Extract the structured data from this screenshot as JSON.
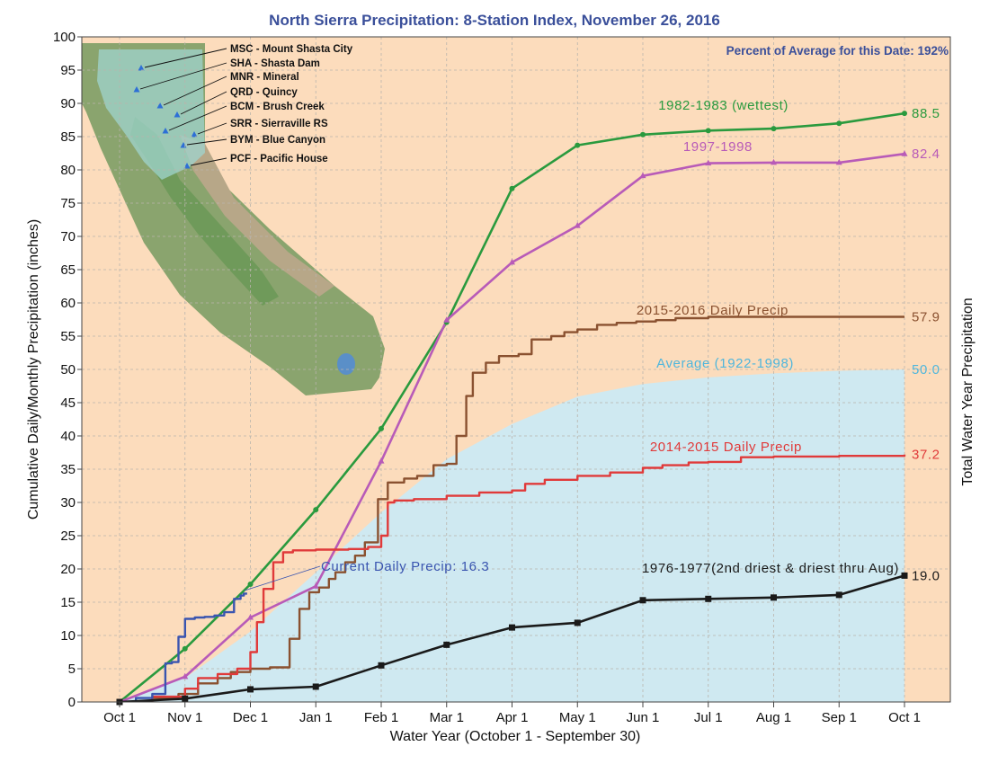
{
  "chart_data": {
    "type": "line",
    "title": "North Sierra Precipitation: 8-Station Index, November 26, 2016",
    "percent_note": "Percent of Average for this Date: 192%",
    "xlabel": "Water Year (October 1 - September 30)",
    "ylabel": "Cumulative Daily/Monthly Precipitation (inches)",
    "ylabel_right": "Total Water Year Precipitation",
    "xlim": [
      0,
      12
    ],
    "ylim": [
      0,
      100
    ],
    "x_ticks": [
      "Oct 1",
      "Nov 1",
      "Dec 1",
      "Jan 1",
      "Feb 1",
      "Mar 1",
      "Apr 1",
      "May 1",
      "Jun 1",
      "Jul 1",
      "Aug 1",
      "Sep 1",
      "Oct 1"
    ],
    "y_ticks": [
      0,
      5,
      10,
      15,
      20,
      25,
      30,
      35,
      40,
      45,
      50,
      55,
      60,
      65,
      70,
      75,
      80,
      85,
      90,
      95,
      100
    ],
    "grid": true,
    "stations": [
      "MSC - Mount Shasta City",
      "SHA - Shasta Dam",
      "MNR - Mineral",
      "QRD - Quincy",
      "BCM - Brush Creek",
      "SRR - Sierraville RS",
      "BYM - Blue Canyon",
      "PCF - Pacific House"
    ],
    "series": [
      {
        "name": "Average (1922-1998)",
        "kind": "area",
        "color": "#cfe9f1",
        "label_color": "#4fb6dc",
        "end_value": "50.0",
        "x": [
          0,
          1,
          2,
          3,
          4,
          5,
          6,
          7,
          8,
          9,
          10,
          11,
          12
        ],
        "y": [
          0,
          3.6,
          10.6,
          19.5,
          28.5,
          36.5,
          41.8,
          45.9,
          47.8,
          48.8,
          49.4,
          49.8,
          50.0
        ]
      },
      {
        "name": "1982-1983 (wettest)",
        "kind": "monthly",
        "color": "#2a9a3e",
        "label_color": "#2a9a3e",
        "end_value": "88.5",
        "x": [
          0,
          1,
          2,
          3,
          4,
          5,
          6,
          7,
          8,
          9,
          10,
          11,
          12
        ],
        "y": [
          0,
          8.0,
          17.7,
          28.9,
          41.1,
          57.1,
          77.2,
          83.7,
          85.3,
          85.9,
          86.2,
          87.0,
          88.5
        ]
      },
      {
        "name": "1997-1998",
        "kind": "monthly",
        "color": "#b85bb8",
        "label_color": "#b85bb8",
        "end_value": "82.4",
        "x": [
          0,
          1,
          2,
          3,
          4,
          5,
          6,
          7,
          8,
          9,
          10,
          11,
          12
        ],
        "y": [
          0,
          3.8,
          12.7,
          17.4,
          36.2,
          57.4,
          66.1,
          71.6,
          79.1,
          81.0,
          81.1,
          81.1,
          82.4
        ]
      },
      {
        "name": "2015-2016 Daily Precip",
        "kind": "daily",
        "color": "#8a5130",
        "label_color": "#8a5130",
        "end_value": "57.9",
        "x": [
          0,
          0.5,
          0.9,
          1.2,
          1.5,
          1.7,
          2.0,
          2.3,
          2.6,
          2.75,
          2.9,
          3.05,
          3.2,
          3.3,
          3.45,
          3.6,
          3.75,
          3.95,
          4.1,
          4.35,
          4.55,
          4.8,
          5.0,
          5.15,
          5.3,
          5.4,
          5.6,
          5.8,
          6.1,
          6.3,
          6.6,
          6.8,
          7.0,
          7.3,
          7.6,
          7.9,
          8.2,
          8.5,
          9.0,
          10.0,
          11.0,
          12.0
        ],
        "y": [
          0,
          0.6,
          1.2,
          2.8,
          3.6,
          4.5,
          5.0,
          5.2,
          9.5,
          14.0,
          16.5,
          17.2,
          18.5,
          19.5,
          21.0,
          22.0,
          24.0,
          30.5,
          33.0,
          33.6,
          34.0,
          35.6,
          35.8,
          40.0,
          46.0,
          49.5,
          51.0,
          52.0,
          52.3,
          54.5,
          55.0,
          55.6,
          56.0,
          56.7,
          57.0,
          57.2,
          57.4,
          57.7,
          57.9,
          57.9,
          57.9,
          57.9
        ]
      },
      {
        "name": "2014-2015 Daily Precip",
        "kind": "daily",
        "color": "#e03a3a",
        "label_color": "#e03a3a",
        "end_value": "37.2",
        "x": [
          0,
          0.5,
          1.0,
          1.2,
          1.5,
          1.8,
          2.0,
          2.1,
          2.2,
          2.35,
          2.5,
          2.65,
          3.0,
          3.5,
          3.8,
          4.0,
          4.1,
          4.2,
          4.5,
          5.0,
          5.5,
          6.0,
          6.2,
          6.5,
          7.0,
          7.5,
          8.0,
          8.3,
          8.7,
          9.0,
          9.5,
          10.0,
          11.0,
          12.0
        ],
        "y": [
          0,
          0.8,
          2.0,
          3.6,
          4.2,
          5.0,
          7.5,
          12.0,
          17.0,
          21.0,
          22.5,
          22.8,
          22.9,
          23.0,
          23.3,
          25.0,
          30.0,
          30.3,
          30.5,
          31.0,
          31.5,
          31.8,
          32.8,
          33.4,
          34.0,
          34.5,
          35.2,
          35.6,
          36.0,
          36.1,
          36.8,
          36.9,
          37.0,
          37.2
        ]
      },
      {
        "name": "Current Daily Precip: 16.3",
        "kind": "current",
        "color": "#3a55b0",
        "label_color": "#3a55b0",
        "end_value": "",
        "x": [
          0,
          0.25,
          0.5,
          0.7,
          0.8,
          0.9,
          1.0,
          1.15,
          1.3,
          1.45,
          1.6,
          1.75,
          1.85,
          1.9,
          1.95
        ],
        "y": [
          0,
          0.6,
          1.2,
          5.8,
          6.0,
          9.8,
          12.5,
          12.7,
          12.8,
          13.0,
          13.5,
          15.5,
          16.0,
          16.3,
          16.3
        ]
      },
      {
        "name": "1976-1977(2nd driest & driest thru Aug)",
        "kind": "monthly",
        "color": "#1a1a1a",
        "label_color": "#1a1a1a",
        "end_value": "19.0",
        "x": [
          0,
          1,
          2,
          3,
          4,
          5,
          6,
          7,
          8,
          9,
          10,
          11,
          12
        ],
        "y": [
          0,
          0.5,
          1.9,
          2.3,
          5.5,
          8.6,
          11.2,
          11.9,
          15.3,
          15.5,
          15.7,
          16.1,
          19.0
        ]
      }
    ]
  }
}
